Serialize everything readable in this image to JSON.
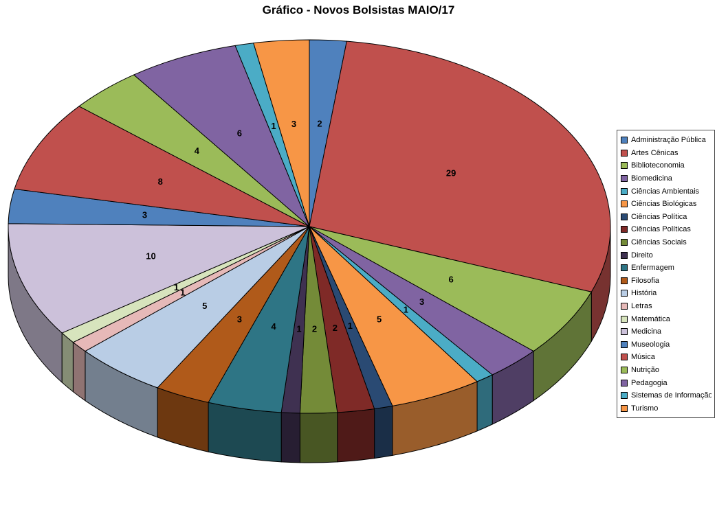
{
  "title": "Gráfico - Novos Bolsistas MAIO/17",
  "chart_data": {
    "type": "pie",
    "title": "Gráfico - Novos Bolsistas MAIO/17",
    "effect_3d": true,
    "start_angle_deg": 0,
    "direction": "clockwise",
    "data_labels": "values",
    "legend_position": "right",
    "background": "#FFFFFF",
    "label_color": "#000000",
    "total": 101,
    "categories": [
      "Administração Pública",
      "Artes Cênicas",
      "Biblioteconomia",
      "Biomedicina",
      "Ciências Ambientais",
      "Ciências Biológicas",
      "Ciências Política",
      "Ciências Políticas",
      "Ciências Sociais",
      "Direito",
      "Enfermagem",
      "Filosofia",
      "História",
      "Letras",
      "Matemática",
      "Medicina",
      "Museologia",
      "Música",
      "Nutrição",
      "Pedagogia",
      "Sistemas de Informação",
      "Turismo"
    ],
    "values": [
      2,
      29,
      6,
      3,
      1,
      5,
      1,
      2,
      2,
      1,
      4,
      3,
      5,
      1,
      1,
      10,
      3,
      8,
      4,
      6,
      1,
      3
    ],
    "colors": [
      "#4F81BD",
      "#C0504D",
      "#9BBB59",
      "#8064A2",
      "#4BACC6",
      "#F79646",
      "#2A4A73",
      "#7F2A27",
      "#748B38",
      "#3F3151",
      "#2E7585",
      "#B05A1A",
      "#B9CDE5",
      "#E6B9B8",
      "#D7E4BD",
      "#CCC1DA",
      "#4F81BD",
      "#C0504D",
      "#9BBB59",
      "#8064A2",
      "#4BACC6",
      "#F79646"
    ]
  }
}
